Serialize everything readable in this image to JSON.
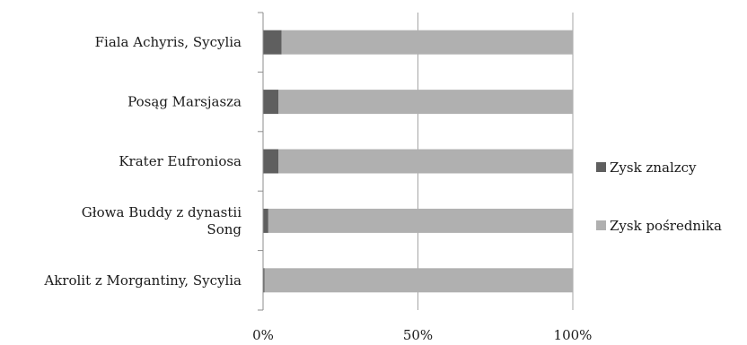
{
  "chart_data": {
    "type": "bar",
    "orientation": "horizontal",
    "stacked": "percent",
    "categories": [
      [
        "Fiala  Achyris, Sycylia"
      ],
      [
        "Posąg Marsjasza"
      ],
      [
        "Krater Eufroniosa"
      ],
      [
        "Głowa Buddy z dynastii",
        "Song"
      ],
      [
        "Akrolit z Morgantiny, Sycylia"
      ]
    ],
    "series": [
      {
        "name": "Zysk znalzcy",
        "color": "#5f5f5f",
        "values": [
          6,
          5,
          5,
          1.7,
          0.5
        ]
      },
      {
        "name": "Zysk pośrednika",
        "color": "#b0b0b0",
        "values": [
          94,
          95,
          95,
          98.3,
          99.5
        ]
      }
    ],
    "x_ticks": [
      "0%",
      "50%",
      "100%"
    ],
    "xlim": [
      0,
      100
    ],
    "grid": "vertical major gridlines",
    "legend_position": "right"
  }
}
